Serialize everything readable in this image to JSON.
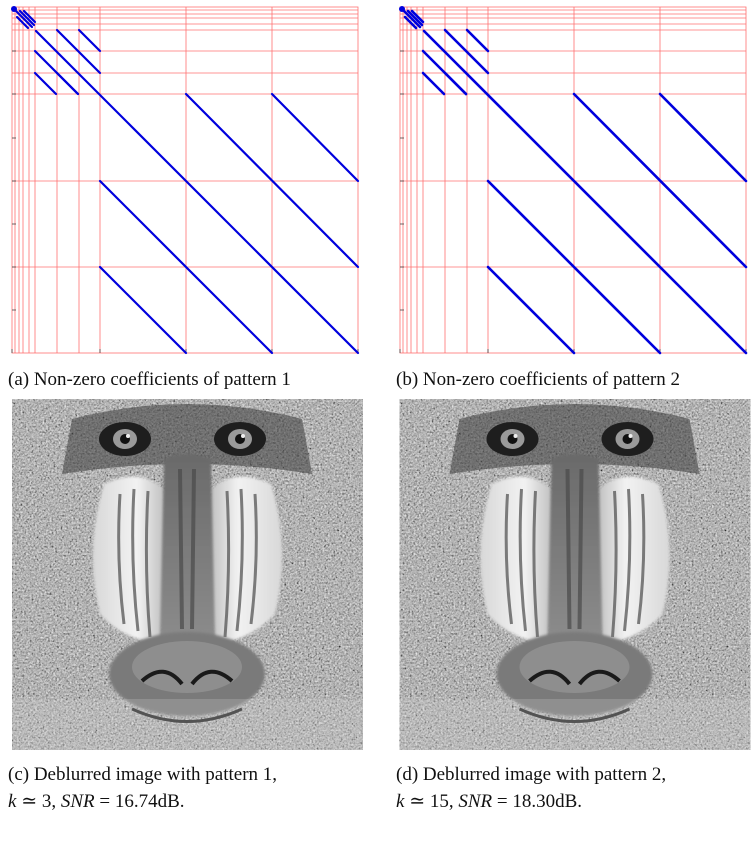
{
  "panels": {
    "a": {
      "caption": "(a) Non-zero coefficients of pattern 1",
      "grid_color": "#ff6666",
      "line_color": "#0000dd"
    },
    "b": {
      "caption": "(b) Non-zero coefficients of pattern 2",
      "grid_color": "#ff6666",
      "line_color": "#0000dd"
    },
    "c": {
      "caption_prefix": "(c) Deblurred image with pattern 1,",
      "k_symbol": "k",
      "k_relation": " ≃ 3, ",
      "snr_symbol": "SNR",
      "snr_value": " = 16.74dB.",
      "image": "deblurred-mandrill-image"
    },
    "d": {
      "caption_prefix": "(d) Deblurred image with pattern 2,",
      "k_symbol": "k",
      "k_relation": " ≃ 15, ",
      "snr_symbol": "SNR",
      "snr_value": " = 18.30dB.",
      "image": "deblurred-mandrill-image"
    }
  }
}
